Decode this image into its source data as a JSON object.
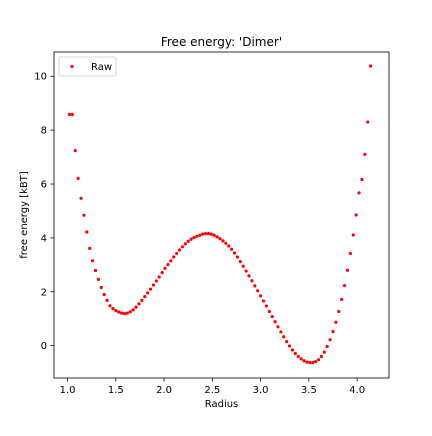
{
  "chart_data": {
    "type": "scatter",
    "title": "Free energy: 'Dimer'",
    "xlabel": "Radius",
    "ylabel": "free energy [kBT]",
    "xlim": [
      0.86,
      4.33
    ],
    "ylim": [
      -1.2,
      10.9
    ],
    "xticks": [
      1.0,
      1.5,
      2.0,
      2.5,
      3.0,
      3.5,
      4.0
    ],
    "xtick_labels": [
      "1.0",
      "1.5",
      "2.0",
      "2.5",
      "3.0",
      "3.5",
      "4.0"
    ],
    "yticks": [
      0,
      2,
      4,
      6,
      8,
      10
    ],
    "ytick_labels": [
      "0",
      "2",
      "4",
      "6",
      "8",
      "10"
    ],
    "grid": false,
    "legend": {
      "position": "top-left",
      "entries": [
        "Raw"
      ]
    },
    "series": [
      {
        "name": "Raw",
        "color": "#ff0000",
        "marker": "point",
        "x": [
          1.02,
          1.05,
          1.08,
          1.11,
          1.14,
          1.17,
          1.2,
          1.23,
          1.26,
          1.29,
          1.32,
          1.35,
          1.38,
          1.41,
          1.44,
          1.47,
          1.5,
          1.53,
          1.56,
          1.59,
          1.62,
          1.65,
          1.68,
          1.71,
          1.74,
          1.77,
          1.8,
          1.83,
          1.86,
          1.89,
          1.92,
          1.95,
          1.98,
          2.01,
          2.04,
          2.07,
          2.1,
          2.13,
          2.16,
          2.19,
          2.22,
          2.25,
          2.28,
          2.31,
          2.34,
          2.37,
          2.4,
          2.43,
          2.46,
          2.49,
          2.52,
          2.55,
          2.58,
          2.61,
          2.64,
          2.67,
          2.7,
          2.73,
          2.76,
          2.79,
          2.82,
          2.85,
          2.88,
          2.91,
          2.94,
          2.97,
          3.0,
          3.03,
          3.06,
          3.09,
          3.12,
          3.15,
          3.18,
          3.21,
          3.24,
          3.27,
          3.3,
          3.33,
          3.36,
          3.39,
          3.42,
          3.45,
          3.48,
          3.51,
          3.54,
          3.57,
          3.6,
          3.63,
          3.66,
          3.69,
          3.72,
          3.75,
          3.78,
          3.81,
          3.84,
          3.87,
          3.9,
          3.93,
          3.96,
          3.99,
          4.02,
          4.05,
          4.08,
          4.11,
          4.14
        ],
        "y": [
          8.58,
          8.58,
          7.24,
          6.21,
          5.47,
          4.84,
          4.22,
          3.61,
          3.15,
          2.79,
          2.46,
          2.16,
          1.9,
          1.68,
          1.48,
          1.38,
          1.3,
          1.25,
          1.21,
          1.19,
          1.21,
          1.26,
          1.33,
          1.43,
          1.55,
          1.68,
          1.82,
          1.96,
          2.1,
          2.25,
          2.4,
          2.55,
          2.71,
          2.87,
          3.01,
          3.15,
          3.29,
          3.42,
          3.55,
          3.67,
          3.78,
          3.87,
          3.95,
          4.01,
          4.06,
          4.1,
          4.14,
          4.16,
          4.16,
          4.14,
          4.1,
          4.04,
          3.97,
          3.89,
          3.8,
          3.7,
          3.58,
          3.44,
          3.29,
          3.12,
          2.95,
          2.77,
          2.59,
          2.41,
          2.22,
          2.04,
          1.85,
          1.66,
          1.47,
          1.27,
          1.08,
          0.89,
          0.7,
          0.51,
          0.33,
          0.15,
          -0.01,
          -0.16,
          -0.29,
          -0.4,
          -0.49,
          -0.56,
          -0.61,
          -0.63,
          -0.63,
          -0.59,
          -0.52,
          -0.4,
          -0.24,
          -0.03,
          0.22,
          0.52,
          0.87,
          1.27,
          1.72,
          2.23,
          2.8,
          3.42,
          4.11,
          4.85,
          5.67,
          6.17,
          7.1,
          8.3,
          10.38
        ]
      }
    ]
  }
}
